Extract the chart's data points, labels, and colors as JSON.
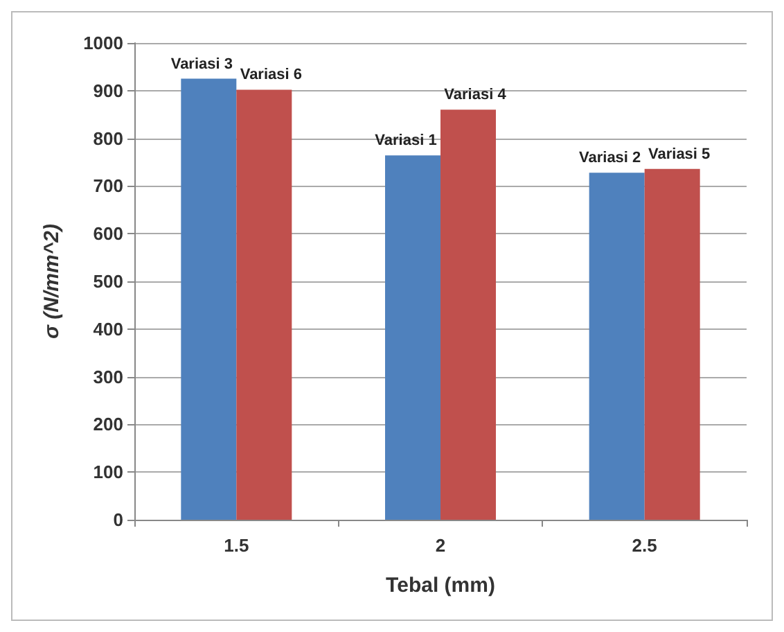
{
  "chart_data": {
    "type": "bar",
    "xlabel": "Tebal (mm)",
    "ylabel": "σ (N/mm^2)",
    "categories": [
      "1.5",
      "2",
      "2.5"
    ],
    "series": [
      {
        "color": "#4f81bd",
        "values": [
          925,
          764,
          728
        ],
        "value_labels": [
          "Variasi 3",
          "Variasi 1",
          "Variasi 2"
        ]
      },
      {
        "color": "#c0504d",
        "values": [
          902,
          860,
          736
        ],
        "value_labels": [
          "Variasi 6",
          "Variasi 4",
          "Variasi 5"
        ]
      }
    ],
    "ylim": [
      0,
      1000
    ],
    "yticks": [
      0,
      100,
      200,
      300,
      400,
      500,
      600,
      700,
      800,
      900,
      1000
    ],
    "grid": "y"
  }
}
